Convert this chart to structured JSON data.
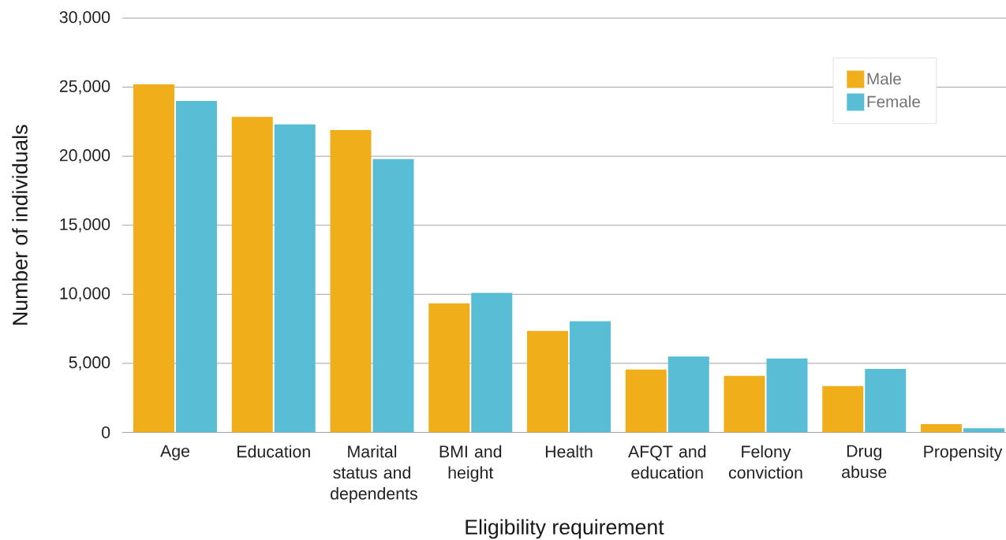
{
  "chart_data": {
    "type": "bar",
    "xlabel": "Eligibility requirement",
    "ylabel": "Number of individuals",
    "categories": [
      "Age",
      "Education",
      "Marital status and dependents",
      "BMI and height",
      "Health",
      "AFQT and education",
      "Felony conviction",
      "Drug abuse",
      "Propensity"
    ],
    "series": [
      {
        "name": "Male",
        "color": "#f0ae1b",
        "values": [
          25200,
          22850,
          21900,
          9350,
          7350,
          4550,
          4100,
          3350,
          600
        ]
      },
      {
        "name": "Female",
        "color": "#59bdd6",
        "values": [
          24000,
          22300,
          19800,
          10100,
          8050,
          5500,
          5350,
          4600,
          300
        ]
      }
    ],
    "ylim": [
      0,
      30000
    ],
    "yticks": [
      0,
      {
        "value": 5000,
        "label": "5,000"
      },
      {
        "value": 10000,
        "label": "10,000"
      },
      {
        "value": 15000,
        "label": "15,000"
      },
      {
        "value": 20000,
        "label": "20,000"
      },
      {
        "value": 25000,
        "label": "25,000"
      },
      {
        "value": 30000,
        "label": "30,000"
      }
    ],
    "grid": "y",
    "legend": "top right"
  }
}
